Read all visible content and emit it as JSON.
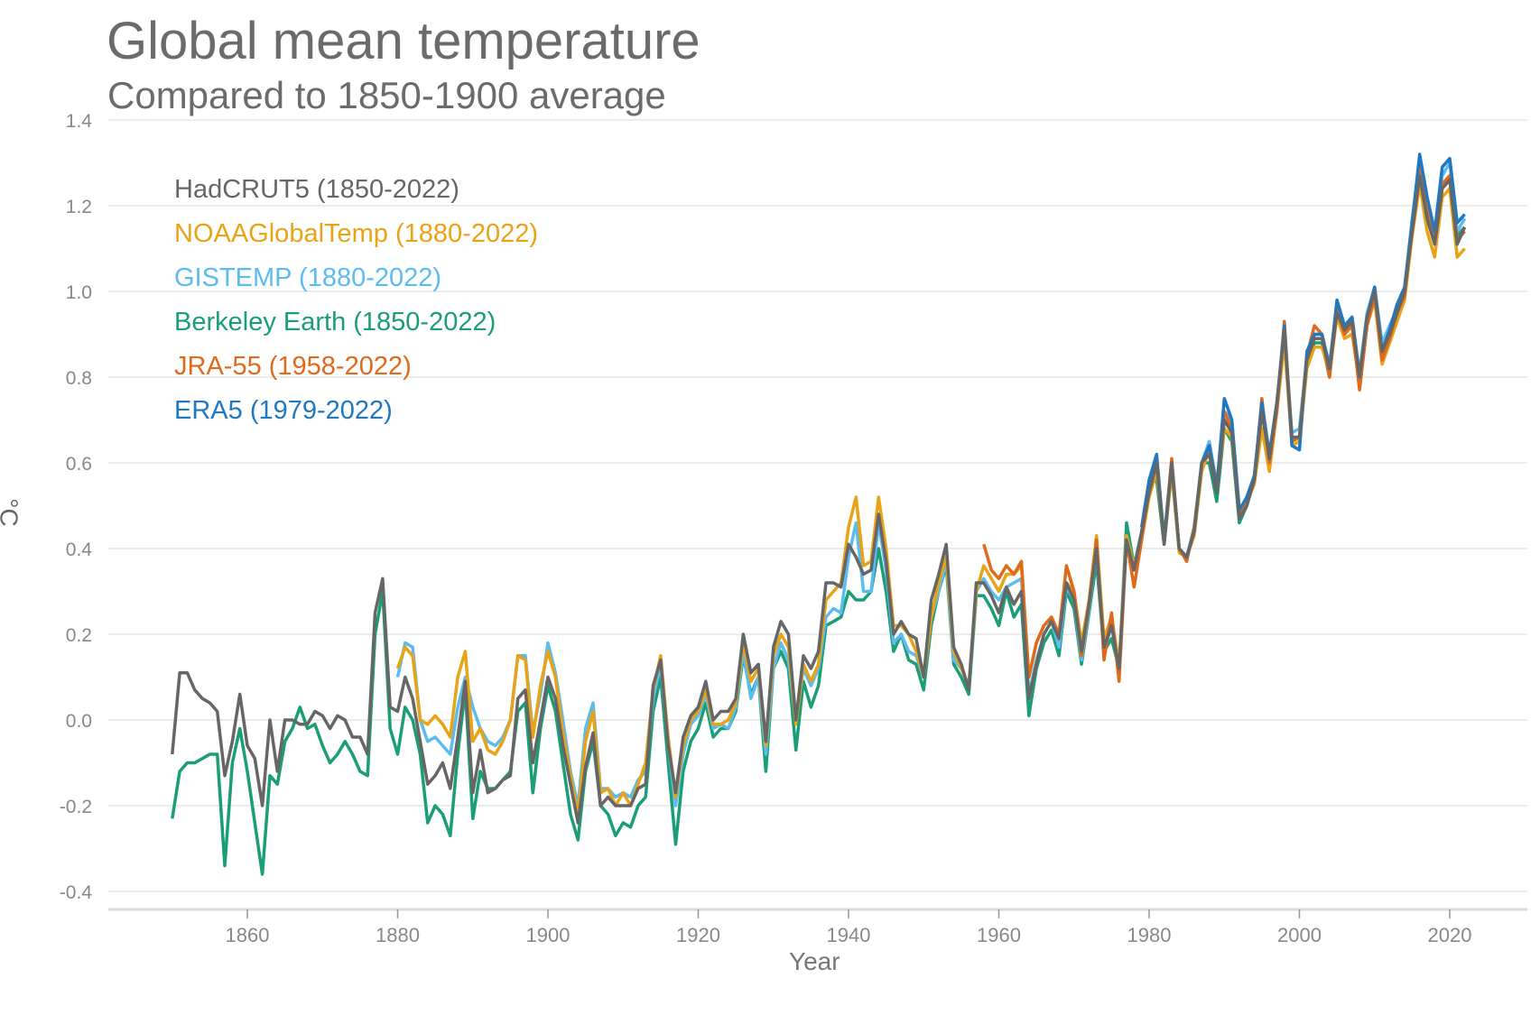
{
  "chart_data": {
    "type": "line",
    "title": "Global mean temperature",
    "subtitle": "Compared to 1850-1900 average",
    "xlabel": "Year",
    "ylabel": "°C",
    "xlim": [
      1845,
      2032
    ],
    "ylim": [
      -0.45,
      1.4
    ],
    "xticks": [
      1860,
      1880,
      1900,
      1920,
      1940,
      1960,
      1980,
      2000,
      2020
    ],
    "yticks": [
      -0.4,
      -0.2,
      0.0,
      0.2,
      0.4,
      0.6,
      0.8,
      1.0,
      1.2,
      1.4
    ],
    "ytick_labels": [
      "-0.4",
      "-0.2",
      "0.0",
      "0.2",
      "0.4",
      "0.6",
      "0.8",
      "1.0",
      "1.2",
      "1.4"
    ],
    "grid": "horizontal",
    "legend_placement": "top-left",
    "series": [
      {
        "name": "HadCRUT5 (1850-2022)",
        "color": "#666666",
        "start": 1850,
        "values": [
          -0.08,
          0.11,
          0.11,
          0.07,
          0.05,
          0.04,
          0.02,
          -0.13,
          -0.05,
          0.06,
          -0.06,
          -0.09,
          -0.2,
          0.0,
          -0.12,
          0.0,
          0.0,
          -0.01,
          -0.01,
          0.02,
          0.01,
          -0.02,
          0.01,
          0.0,
          -0.04,
          -0.04,
          -0.08,
          0.25,
          0.33,
          0.03,
          0.02,
          0.1,
          0.05,
          -0.05,
          -0.15,
          -0.13,
          -0.1,
          -0.16,
          -0.04,
          0.09,
          -0.17,
          -0.07,
          -0.17,
          -0.16,
          -0.14,
          -0.13,
          0.05,
          0.07,
          -0.1,
          0.0,
          0.1,
          0.05,
          -0.06,
          -0.15,
          -0.24,
          -0.11,
          -0.03,
          -0.2,
          -0.18,
          -0.2,
          -0.2,
          -0.2,
          -0.16,
          -0.15,
          0.08,
          0.14,
          -0.06,
          -0.17,
          -0.04,
          0.01,
          0.03,
          0.09,
          0.0,
          0.02,
          0.02,
          0.05,
          0.2,
          0.11,
          0.13,
          -0.05,
          0.17,
          0.23,
          0.2,
          0.0,
          0.15,
          0.12,
          0.16,
          0.32,
          0.32,
          0.31,
          0.41,
          0.38,
          0.34,
          0.35,
          0.48,
          0.37,
          0.2,
          0.23,
          0.2,
          0.19,
          0.1,
          0.28,
          0.34,
          0.41,
          0.17,
          0.13,
          0.07,
          0.32,
          0.32,
          0.29,
          0.25,
          0.31,
          0.27,
          0.3,
          0.05,
          0.13,
          0.2,
          0.23,
          0.19,
          0.32,
          0.28,
          0.16,
          0.27,
          0.4,
          0.17,
          0.22,
          0.12,
          0.42,
          0.35,
          0.44,
          0.53,
          0.6,
          0.41,
          0.6,
          0.4,
          0.38,
          0.44,
          0.6,
          0.62,
          0.53,
          0.7,
          0.67,
          0.47,
          0.5,
          0.56,
          0.72,
          0.61,
          0.74,
          0.91,
          0.66,
          0.66,
          0.84,
          0.89,
          0.89,
          0.82,
          0.95,
          0.91,
          0.93,
          0.8,
          0.94,
          1.0,
          0.86,
          0.9,
          0.95,
          1.0,
          1.14,
          1.27,
          1.17,
          1.11,
          1.24,
          1.26,
          1.11,
          1.15
        ]
      },
      {
        "name": "NOAAGlobalTemp (1880-2022)",
        "color": "#e8a317",
        "start": 1880,
        "values": [
          0.12,
          0.17,
          0.15,
          0.0,
          -0.01,
          0.01,
          -0.01,
          -0.04,
          0.1,
          0.16,
          -0.05,
          -0.02,
          -0.07,
          -0.08,
          -0.05,
          0.0,
          0.15,
          0.14,
          -0.04,
          0.08,
          0.16,
          0.1,
          -0.03,
          -0.13,
          -0.22,
          -0.05,
          0.02,
          -0.17,
          -0.16,
          -0.2,
          -0.17,
          -0.2,
          -0.15,
          -0.1,
          0.07,
          0.15,
          -0.04,
          -0.18,
          -0.06,
          0.0,
          0.02,
          0.07,
          -0.01,
          -0.01,
          0.0,
          0.04,
          0.18,
          0.09,
          0.12,
          -0.06,
          0.15,
          0.2,
          0.17,
          -0.01,
          0.13,
          0.09,
          0.13,
          0.28,
          0.3,
          0.32,
          0.45,
          0.52,
          0.36,
          0.37,
          0.52,
          0.4,
          0.22,
          0.22,
          0.2,
          0.16,
          0.1,
          0.24,
          0.32,
          0.38,
          0.16,
          0.12,
          0.08,
          0.3,
          0.36,
          0.33,
          0.3,
          0.34,
          0.34,
          0.36,
          0.1,
          0.18,
          0.22,
          0.24,
          0.2,
          0.32,
          0.3,
          0.18,
          0.28,
          0.43,
          0.19,
          0.24,
          0.13,
          0.43,
          0.36,
          0.42,
          0.52,
          0.58,
          0.42,
          0.58,
          0.39,
          0.38,
          0.43,
          0.58,
          0.63,
          0.54,
          0.68,
          0.66,
          0.48,
          0.51,
          0.55,
          0.68,
          0.58,
          0.72,
          0.88,
          0.64,
          0.65,
          0.82,
          0.87,
          0.87,
          0.81,
          0.94,
          0.89,
          0.9,
          0.79,
          0.92,
          0.98,
          0.83,
          0.88,
          0.93,
          0.98,
          1.13,
          1.25,
          1.14,
          1.08,
          1.22,
          1.24,
          1.08,
          1.1
        ]
      },
      {
        "name": "GISTEMP (1880-2022)",
        "color": "#5bbcf0",
        "start": 1880,
        "values": [
          0.1,
          0.18,
          0.17,
          0.0,
          -0.05,
          -0.04,
          -0.06,
          -0.08,
          0.03,
          0.1,
          0.03,
          -0.02,
          -0.05,
          -0.06,
          -0.04,
          0.0,
          0.15,
          0.15,
          -0.03,
          0.06,
          0.18,
          0.11,
          0.0,
          -0.12,
          -0.2,
          -0.02,
          0.04,
          -0.16,
          -0.16,
          -0.18,
          -0.17,
          -0.18,
          -0.14,
          -0.12,
          0.05,
          0.13,
          -0.06,
          -0.2,
          -0.08,
          -0.01,
          0.01,
          0.06,
          -0.02,
          -0.01,
          -0.02,
          0.03,
          0.16,
          0.05,
          0.1,
          -0.08,
          0.12,
          0.18,
          0.14,
          0.0,
          0.12,
          0.08,
          0.12,
          0.24,
          0.26,
          0.25,
          0.38,
          0.46,
          0.3,
          0.3,
          0.46,
          0.35,
          0.18,
          0.2,
          0.16,
          0.15,
          0.1,
          0.24,
          0.3,
          0.37,
          0.14,
          0.12,
          0.08,
          0.3,
          0.33,
          0.3,
          0.28,
          0.31,
          0.32,
          0.33,
          0.06,
          0.14,
          0.2,
          0.23,
          0.17,
          0.31,
          0.28,
          0.14,
          0.26,
          0.4,
          0.16,
          0.22,
          0.12,
          0.43,
          0.36,
          0.44,
          0.55,
          0.6,
          0.42,
          0.6,
          0.4,
          0.38,
          0.45,
          0.6,
          0.65,
          0.55,
          0.72,
          0.7,
          0.49,
          0.51,
          0.57,
          0.73,
          0.62,
          0.74,
          0.9,
          0.67,
          0.68,
          0.85,
          0.9,
          0.9,
          0.83,
          0.97,
          0.92,
          0.94,
          0.81,
          0.95,
          1.01,
          0.88,
          0.92,
          0.96,
          1.01,
          1.17,
          1.3,
          1.2,
          1.13,
          1.27,
          1.3,
          1.14,
          1.17
        ]
      },
      {
        "name": "Berkeley Earth (1850-2022)",
        "color": "#1a9e77",
        "start": 1850,
        "values": [
          -0.23,
          -0.12,
          -0.1,
          -0.1,
          -0.09,
          -0.08,
          -0.08,
          -0.34,
          -0.1,
          -0.02,
          -0.12,
          -0.24,
          -0.36,
          -0.13,
          -0.15,
          -0.05,
          -0.02,
          0.03,
          -0.02,
          -0.01,
          -0.06,
          -0.1,
          -0.08,
          -0.05,
          -0.08,
          -0.12,
          -0.13,
          0.2,
          0.3,
          -0.02,
          -0.08,
          0.03,
          0.0,
          -0.08,
          -0.24,
          -0.2,
          -0.22,
          -0.27,
          -0.08,
          0.07,
          -0.23,
          -0.12,
          -0.16,
          -0.16,
          -0.14,
          -0.12,
          0.02,
          0.04,
          -0.17,
          -0.02,
          0.08,
          0.02,
          -0.1,
          -0.22,
          -0.28,
          -0.12,
          -0.05,
          -0.2,
          -0.22,
          -0.27,
          -0.24,
          -0.25,
          -0.2,
          -0.18,
          0.02,
          0.1,
          -0.1,
          -0.29,
          -0.12,
          -0.05,
          -0.02,
          0.04,
          -0.04,
          -0.02,
          -0.02,
          0.02,
          0.15,
          0.06,
          0.1,
          -0.12,
          0.12,
          0.16,
          0.12,
          -0.07,
          0.09,
          0.03,
          0.08,
          0.22,
          0.23,
          0.24,
          0.3,
          0.28,
          0.28,
          0.3,
          0.4,
          0.3,
          0.16,
          0.2,
          0.14,
          0.13,
          0.07,
          0.22,
          0.3,
          0.36,
          0.13,
          0.1,
          0.06,
          0.29,
          0.29,
          0.26,
          0.22,
          0.3,
          0.24,
          0.27,
          0.01,
          0.12,
          0.18,
          0.21,
          0.15,
          0.3,
          0.26,
          0.13,
          0.25,
          0.37,
          0.16,
          0.19,
          0.12,
          0.46,
          0.36,
          0.43,
          0.55,
          0.56,
          0.41,
          0.58,
          0.4,
          0.38,
          0.44,
          0.6,
          0.6,
          0.51,
          0.68,
          0.65,
          0.46,
          0.5,
          0.56,
          0.72,
          0.61,
          0.73,
          0.9,
          0.65,
          0.66,
          0.83,
          0.88,
          0.88,
          0.8,
          0.96,
          0.9,
          0.92,
          0.8,
          0.93,
          1.0,
          0.86,
          0.9,
          0.95,
          1.0,
          1.15,
          1.29,
          1.19,
          1.12,
          1.25,
          1.27,
          1.13,
          1.15
        ]
      },
      {
        "name": "JRA-55 (1958-2022)",
        "color": "#e06a1b",
        "start": 1958,
        "values": [
          0.41,
          0.35,
          0.33,
          0.36,
          0.34,
          0.37,
          0.1,
          0.18,
          0.22,
          0.24,
          0.2,
          0.36,
          0.3,
          0.15,
          0.27,
          0.42,
          0.14,
          0.25,
          0.09,
          0.42,
          0.31,
          0.42,
          0.54,
          0.6,
          0.42,
          0.61,
          0.4,
          0.37,
          0.45,
          0.6,
          0.64,
          0.55,
          0.72,
          0.68,
          0.48,
          0.52,
          0.56,
          0.75,
          0.6,
          0.72,
          0.93,
          0.65,
          0.66,
          0.85,
          0.92,
          0.9,
          0.8,
          0.96,
          0.9,
          0.92,
          0.77,
          0.92,
          0.99,
          0.84,
          0.89,
          0.95,
          0.99,
          1.15,
          1.3,
          1.2,
          1.12,
          1.25,
          1.27,
          1.12,
          1.14
        ]
      },
      {
        "name": "ERA5 (1979-2022)",
        "color": "#1f78c1",
        "start": 1979,
        "values": [
          0.45,
          0.56,
          0.62,
          0.42,
          0.6,
          0.4,
          0.38,
          0.44,
          0.6,
          0.64,
          0.54,
          0.75,
          0.7,
          0.49,
          0.52,
          0.57,
          0.74,
          0.62,
          0.74,
          0.92,
          0.64,
          0.63,
          0.86,
          0.9,
          0.9,
          0.82,
          0.98,
          0.92,
          0.94,
          0.8,
          0.94,
          1.01,
          0.86,
          0.91,
          0.97,
          1.01,
          1.16,
          1.32,
          1.22,
          1.14,
          1.29,
          1.31,
          1.16,
          1.18
        ]
      }
    ],
    "draw_order": [
      3,
      2,
      1,
      4,
      5,
      0
    ]
  }
}
